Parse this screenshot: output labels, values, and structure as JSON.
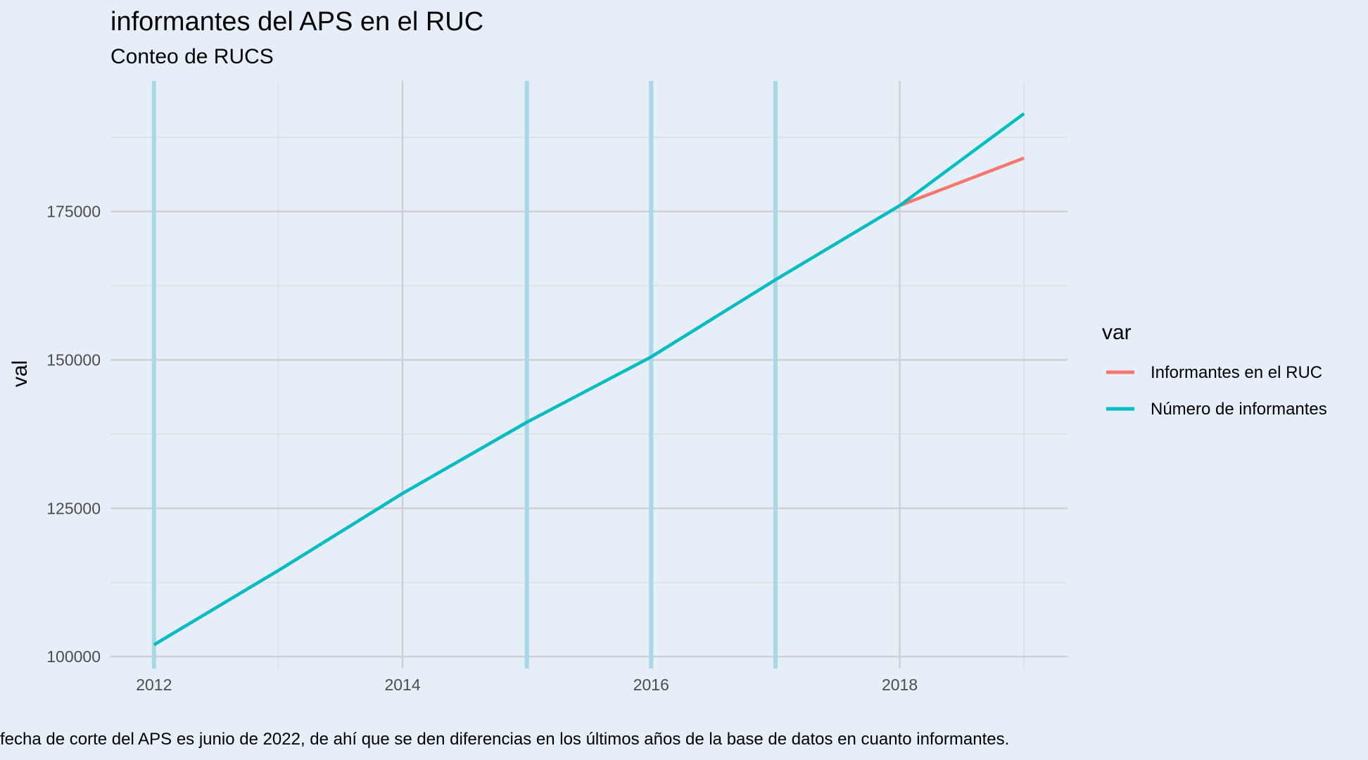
{
  "chart_data": {
    "type": "line",
    "title": "informantes del APS en el RUC",
    "subtitle": "Conteo de RUCS",
    "xlabel": "",
    "ylabel": "val",
    "caption": "fecha de corte del APS es junio de 2022, de ahí que se den diferencias en los últimos años de la base de datos en cuanto informantes.",
    "xlim": [
      2011.65,
      2019.35
    ],
    "ylim": [
      98000,
      197000
    ],
    "x_ticks": [
      2012,
      2014,
      2016,
      2018
    ],
    "x_tick_labels": [
      "2012",
      "2014",
      "2016",
      "2018"
    ],
    "y_ticks": [
      100000,
      125000,
      150000,
      175000
    ],
    "y_tick_labels": [
      "100000",
      "125000",
      "150000",
      "175000"
    ],
    "grid": true,
    "legend_title": "var",
    "legend_position": "right",
    "reference_lines_x": [
      2012,
      2015,
      2016,
      2017
    ],
    "reference_line_color": "#a8d8e6",
    "series": [
      {
        "name": "Informantes en el RUC",
        "color": "#f8766d",
        "x": [
          2012,
          2013,
          2014,
          2015,
          2016,
          2017,
          2018,
          2019
        ],
        "values": [
          102000,
          114500,
          127500,
          139500,
          150500,
          163500,
          176000,
          184000
        ]
      },
      {
        "name": "Número de informantes",
        "color": "#00bfc4",
        "x": [
          2012,
          2013,
          2014,
          2015,
          2016,
          2017,
          2018,
          2019
        ],
        "values": [
          102000,
          114500,
          127500,
          139500,
          150500,
          163500,
          176000,
          191500
        ]
      }
    ]
  }
}
